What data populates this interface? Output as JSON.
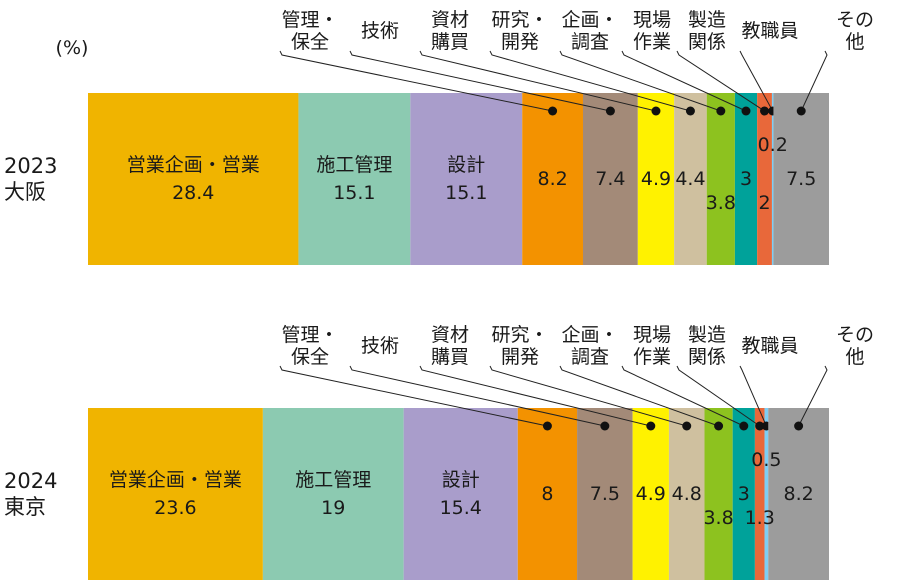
{
  "chart_data": {
    "type": "stacked_bar_horizontal",
    "unit_label": "(%)",
    "categories": [
      "2023\n大阪",
      "2024\n東京"
    ],
    "xlim": [
      0,
      100
    ],
    "series": [
      {
        "name": "営業企画・営業",
        "color": "#f0b400",
        "values": [
          28.4,
          23.6
        ]
      },
      {
        "name": "施工管理",
        "color": "#8ccab1",
        "values": [
          15.1,
          19.0
        ]
      },
      {
        "name": "設計",
        "color": "#a99dcb",
        "values": [
          15.1,
          15.4
        ]
      },
      {
        "name": "管理・\n保全",
        "color": "#f39200",
        "values": [
          8.2,
          8.0
        ]
      },
      {
        "name": "技術",
        "color": "#a38a78",
        "values": [
          7.4,
          7.5
        ]
      },
      {
        "name": "資材\n購買",
        "color": "#fff200",
        "values": [
          4.9,
          4.9
        ]
      },
      {
        "name": "研究・\n開発",
        "color": "#cfc09f",
        "values": [
          4.4,
          4.8
        ]
      },
      {
        "name": "企画・\n調査",
        "color": "#8dc21f",
        "values": [
          3.8,
          3.8
        ]
      },
      {
        "name": "現場\n作業",
        "color": "#00a29a",
        "values": [
          3.0,
          3.0
        ]
      },
      {
        "name": "製造\n関係",
        "color": "#e8683a",
        "values": [
          2.0,
          1.3
        ]
      },
      {
        "name": "教職員",
        "color": "#7ecef4",
        "values": [
          0.2,
          0.5
        ]
      },
      {
        "name": "その他",
        "color": "#9c9c9c",
        "values": [
          7.5,
          8.2
        ]
      }
    ]
  }
}
